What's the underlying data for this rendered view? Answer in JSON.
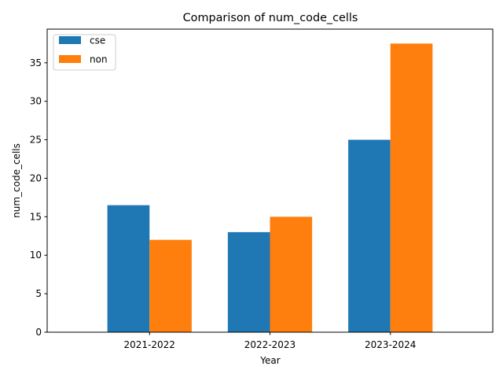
{
  "chart_data": {
    "type": "bar",
    "title": "Comparison of num_code_cells",
    "xlabel": "Year",
    "ylabel": "num_code_cells",
    "categories": [
      "2021-2022",
      "2022-2023",
      "2023-2024"
    ],
    "series": [
      {
        "name": "cse",
        "color": "#1f77b4",
        "values": [
          16.5,
          13.0,
          25.0
        ]
      },
      {
        "name": "non",
        "color": "#ff7f0e",
        "values": [
          12.0,
          15.0,
          37.5
        ]
      }
    ],
    "ylim": [
      0,
      39.375
    ],
    "yticks": [
      0,
      5,
      10,
      15,
      20,
      25,
      30,
      35
    ],
    "grid": false,
    "legend_position": "top-left"
  }
}
